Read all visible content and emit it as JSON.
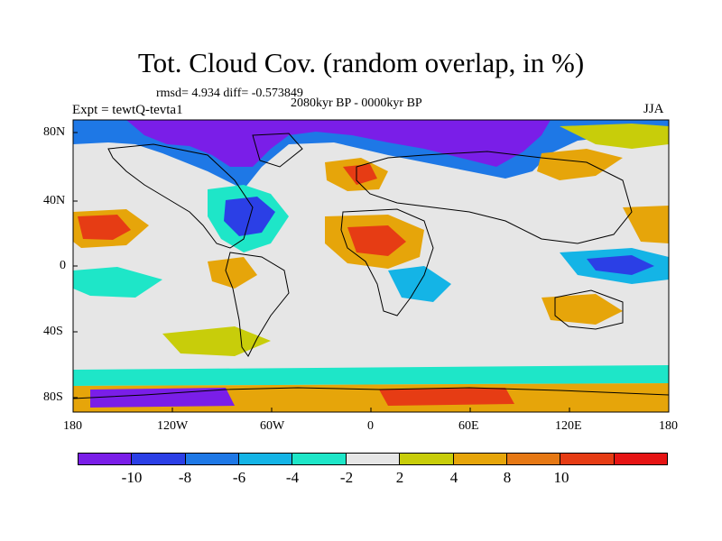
{
  "title": "Tot. Cloud Cov. (random overlap, in %)",
  "stats": "rmsd= 4.934  diff= -0.573849",
  "subtitle": "2080kyr BP - 0000kyr BP",
  "experiment": "Expt = tewtQ-tevta1",
  "season": "JJA",
  "lat_labels": [
    "80N",
    "40N",
    "0",
    "40S",
    "80S"
  ],
  "lon_labels": [
    "180",
    "120W",
    "60W",
    "0",
    "60E",
    "120E",
    "180"
  ],
  "colorbar": {
    "colors": [
      "#7a1ee8",
      "#2b3fe6",
      "#1e78e6",
      "#14b4e6",
      "#1ee6c8",
      "#e6e6e6",
      "#c8cd0a",
      "#e6a50a",
      "#e67814",
      "#e63c14",
      "#e61414"
    ],
    "labels": [
      "-10",
      "-8",
      "-6",
      "-4",
      "-2",
      "2",
      "4",
      "8",
      "10"
    ]
  },
  "colors": {
    "land_outline": "#000000",
    "background_field": "#e6e6e6"
  }
}
